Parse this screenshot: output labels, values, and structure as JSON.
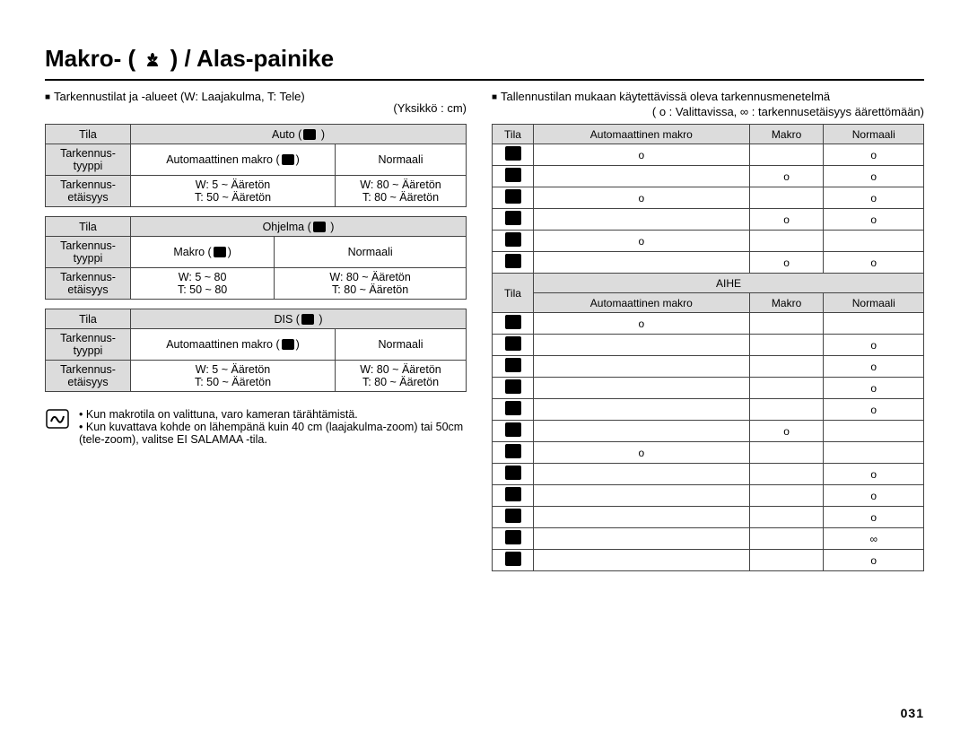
{
  "title_pre": "Makro- (",
  "title_post": ") / Alas-painike",
  "left": {
    "bullet": "Tarkennustilat ja -alueet (W: Laajakulma, T: Tele)",
    "unit": "(Yksikkö : cm)",
    "tables": [
      {
        "tila": "Tila",
        "tila_val": "Auto (",
        "tyyppi": "Tarkennus-\ntyyppi",
        "c1": "Automaattinen makro (",
        "c1b": ")",
        "c2": "Normaali",
        "etaisyys": "Tarkennus-\netäisyys",
        "d1a": "W: 5 ~ Ääretön",
        "d1b": "T: 50 ~ Ääretön",
        "d2a": "W: 80 ~ Ääretön",
        "d2b": "T: 80 ~ Ääretön"
      },
      {
        "tila": "Tila",
        "tila_val": "Ohjelma (",
        "tyyppi": "Tarkennus-\ntyyppi",
        "c1": "Makro (",
        "c1b": ")",
        "c2": "Normaali",
        "etaisyys": "Tarkennus-\netäisyys",
        "d1a": "W: 5 ~ 80",
        "d1b": "T: 50 ~ 80",
        "d2a": "W: 80 ~ Ääretön",
        "d2b": "T: 80 ~ Ääretön"
      },
      {
        "tila": "Tila",
        "tila_val": "DIS (",
        "tyyppi": "Tarkennus-\ntyyppi",
        "c1": "Automaattinen makro (",
        "c1b": ")",
        "c2": "Normaali",
        "etaisyys": "Tarkennus-\netäisyys",
        "d1a": "W: 5 ~ Ääretön",
        "d1b": "T: 50 ~ Ääretön",
        "d2a": "W: 80 ~ Ääretön",
        "d2b": "T: 80 ~ Ääretön"
      }
    ],
    "notes": [
      "Kun makrotila on valittuna, varo kameran tärähtämistä.",
      "Kun kuvattava kohde on lähempänä kuin 40 cm (laajakulma-zoom) tai 50cm (tele-zoom), valitse EI SALAMAA -tila."
    ]
  },
  "right": {
    "bullet": "Tallennustilan mukaan käytettävissä oleva tarkennusmenetelmä",
    "sub": "( o : Valittavissa, ∞ : tarkennusetäisyys äärettömään)",
    "hdr": {
      "tila": "Tila",
      "a": "Automaattinen makro",
      "b": "Makro",
      "c": "Normaali"
    },
    "rows1": [
      {
        "a": "o",
        "b": "",
        "c": "o"
      },
      {
        "a": "",
        "b": "o",
        "c": "o"
      },
      {
        "a": "o",
        "b": "",
        "c": "o"
      },
      {
        "a": "",
        "b": "o",
        "c": "o"
      },
      {
        "a": "o",
        "b": "",
        "c": ""
      },
      {
        "a": "",
        "b": "o",
        "c": "o"
      }
    ],
    "aihe": "AIHE",
    "hdr2": {
      "tila": "Tila",
      "a": "Automaattinen makro",
      "b": "Makro",
      "c": "Normaali"
    },
    "rows2": [
      {
        "a": "o",
        "b": "",
        "c": ""
      },
      {
        "a": "",
        "b": "",
        "c": "o"
      },
      {
        "a": "",
        "b": "",
        "c": "o"
      },
      {
        "a": "",
        "b": "",
        "c": "o"
      },
      {
        "a": "",
        "b": "",
        "c": "o"
      },
      {
        "a": "",
        "b": "o",
        "c": ""
      },
      {
        "a": "o",
        "b": "",
        "c": ""
      },
      {
        "a": "",
        "b": "",
        "c": "o"
      },
      {
        "a": "",
        "b": "",
        "c": "o"
      },
      {
        "a": "",
        "b": "",
        "c": "o"
      },
      {
        "a": "",
        "b": "",
        "c": "∞"
      },
      {
        "a": "",
        "b": "",
        "c": "o"
      }
    ]
  },
  "page": "031"
}
